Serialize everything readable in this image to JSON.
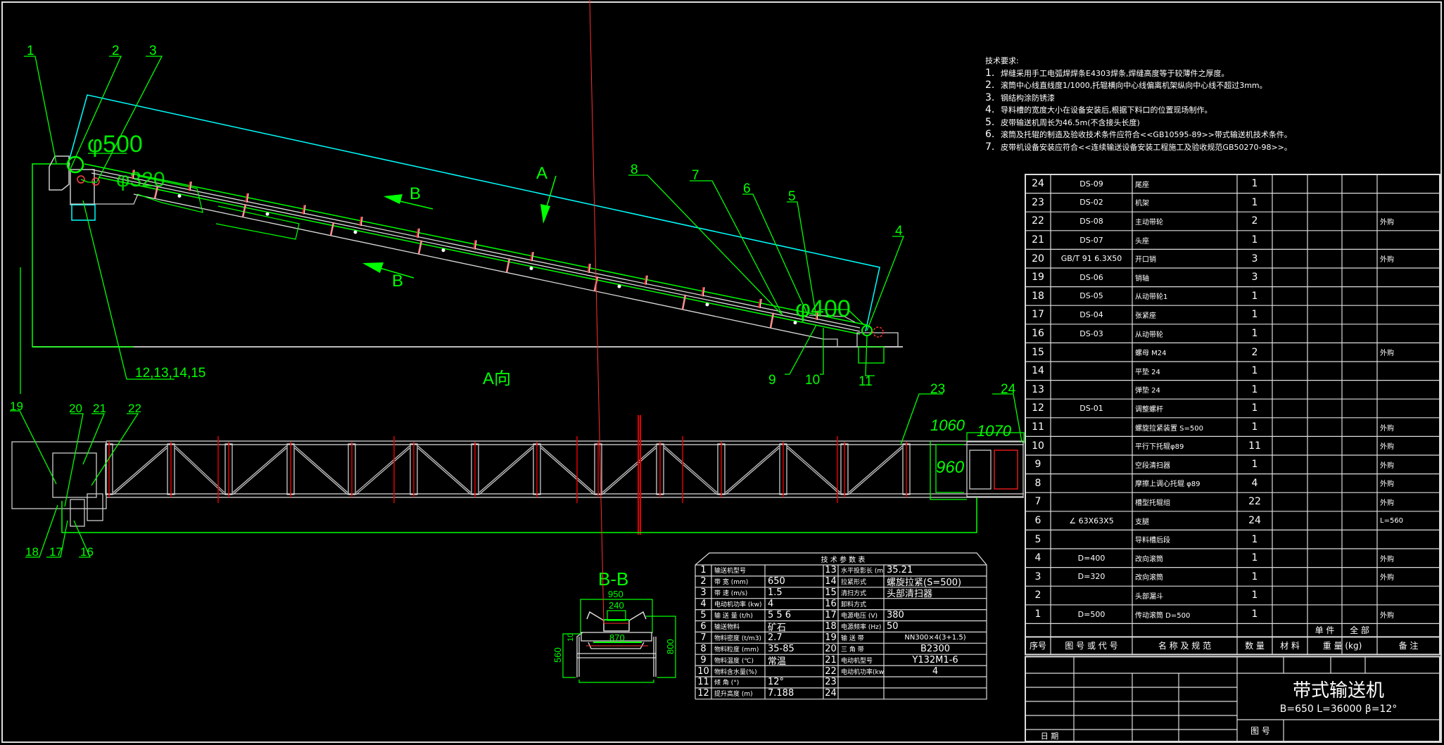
{
  "elevation": {
    "labels": [
      "1",
      "2",
      "3",
      "4",
      "5",
      "6",
      "7",
      "8",
      "9",
      "10",
      "11",
      "12,13,14,15"
    ],
    "diameters": {
      "head": "φ500",
      "bend": "φ320",
      "tail": "φ400"
    },
    "view_arrow": "A",
    "section_arrow": "B",
    "view_title": "A向"
  },
  "plan": {
    "labels": [
      "16",
      "17",
      "18",
      "19",
      "20",
      "21",
      "22",
      "23",
      "24"
    ],
    "dimensions": {
      "d1060": "1060",
      "d1070": "1070",
      "d960": "960"
    }
  },
  "section": {
    "title": "B-B",
    "dimensions": {
      "d950": "950",
      "d240": "240",
      "d870": "870",
      "d560": "560",
      "d800": "800",
      "d10": "10"
    }
  },
  "notes": {
    "heading": "技术要求:",
    "items": [
      {
        "num": "1.",
        "text": "焊缝采用手工电弧焊焊条E4303焊条,焊缝高度等于较薄件之厚度。"
      },
      {
        "num": "2.",
        "text": "滚筒中心线直线度1/1000,托辊横向中心线偏离机架纵向中心线不超过3mm。"
      },
      {
        "num": "3.",
        "text": "钢结构涂防锈漆"
      },
      {
        "num": "4.",
        "text": "导料槽的宽度大小在设备安装后,根据下料口的位置现场制作。"
      },
      {
        "num": "5.",
        "text": "皮带输送机周长为46.5m(不含接头长度)"
      },
      {
        "num": "6.",
        "text": "滚筒及托辊的制造及验收技术条件应符合<<GB10595-89>>带式输送机技术条件。"
      },
      {
        "num": "7.",
        "text": "皮带机设备安装应符合<<连续输送设备安装工程施工及验收规范GB50270-98>>。"
      }
    ]
  },
  "params": {
    "title": "技 术 参 数 表",
    "left": [
      {
        "no": "1",
        "name": "输送机型号",
        "value": ""
      },
      {
        "no": "2",
        "name": "带  宽 (mm)",
        "value": "650"
      },
      {
        "no": "3",
        "name": "带  速 (m/s)",
        "value": "1.5"
      },
      {
        "no": "4",
        "name": "电动机功率 (kw)",
        "value": "4"
      },
      {
        "no": "5",
        "name": "输 送 量 (t/h)",
        "value": "5 5 6"
      },
      {
        "no": "6",
        "name": "输送物料",
        "value": "矿石"
      },
      {
        "no": "7",
        "name": "物料密度 (t/m3)",
        "value": "2.7"
      },
      {
        "no": "8",
        "name": "物料粒度 (mm)",
        "value": "35-85"
      },
      {
        "no": "9",
        "name": "物料温度 (℃)",
        "value": "常温"
      },
      {
        "no": "10",
        "name": "物料含水量(%)",
        "value": ""
      },
      {
        "no": "11",
        "name": "倾  角 (°)",
        "value": "12°"
      },
      {
        "no": "12",
        "name": "提升高度 (m)",
        "value": "7.188"
      }
    ],
    "right": [
      {
        "no": "13",
        "name": "水平投影长 (m)",
        "value": "35.21"
      },
      {
        "no": "14",
        "name": "拉紧形式",
        "value": "螺旋拉紧(S=500)"
      },
      {
        "no": "15",
        "name": "清扫方式",
        "value": "头部清扫器"
      },
      {
        "no": "16",
        "name": "卸料方式",
        "value": ""
      },
      {
        "no": "17",
        "name": "电源电压 (V)",
        "value": "380"
      },
      {
        "no": "18",
        "name": "电源频率 (Hz)",
        "value": "50"
      },
      {
        "no": "19",
        "name": "输 送 带",
        "value": "NN300×4(3+1.5)"
      },
      {
        "no": "20",
        "name": "三 角 带",
        "value": "B2300"
      },
      {
        "no": "21",
        "name": "电动机型号",
        "value": "Y132M1-6"
      },
      {
        "no": "22",
        "name": "电动机功率(kw)",
        "value": "4"
      },
      {
        "no": "23",
        "name": "",
        "value": ""
      },
      {
        "no": "24",
        "name": "",
        "value": ""
      }
    ]
  },
  "bom": {
    "rows": [
      {
        "no": "24",
        "code": "DS-09",
        "name": "尾座",
        "qty": "1",
        "remark": ""
      },
      {
        "no": "23",
        "code": "DS-02",
        "name": "机架",
        "qty": "1",
        "remark": ""
      },
      {
        "no": "22",
        "code": "DS-08",
        "name": "主动带轮",
        "qty": "2",
        "remark": "外购"
      },
      {
        "no": "21",
        "code": "DS-07",
        "name": "头座",
        "qty": "1",
        "remark": ""
      },
      {
        "no": "20",
        "code": "GB/T 91 6.3X50",
        "name": "开口销",
        "qty": "3",
        "remark": "外购"
      },
      {
        "no": "19",
        "code": "DS-06",
        "name": "销轴",
        "qty": "3",
        "remark": ""
      },
      {
        "no": "18",
        "code": "DS-05",
        "name": "从动带轮1",
        "qty": "1",
        "remark": ""
      },
      {
        "no": "17",
        "code": "DS-04",
        "name": "张紧座",
        "qty": "1",
        "remark": ""
      },
      {
        "no": "16",
        "code": "DS-03",
        "name": "从动带轮",
        "qty": "1",
        "remark": ""
      },
      {
        "no": "15",
        "code": "",
        "name": "螺母 M24",
        "qty": "2",
        "remark": "外购"
      },
      {
        "no": "14",
        "code": "",
        "name": "平垫 24",
        "qty": "1",
        "remark": ""
      },
      {
        "no": "13",
        "code": "",
        "name": "弹垫 24",
        "qty": "1",
        "remark": ""
      },
      {
        "no": "12",
        "code": "DS-01",
        "name": "调整螺杆",
        "qty": "1",
        "remark": ""
      },
      {
        "no": "11",
        "code": "",
        "name": "螺旋拉紧装置 S=500",
        "qty": "1",
        "remark": "外购"
      },
      {
        "no": "10",
        "code": "",
        "name": "平行下托辊φ89",
        "qty": "11",
        "remark": "外购"
      },
      {
        "no": "9",
        "code": "",
        "name": "空段清扫器",
        "qty": "1",
        "remark": "外购"
      },
      {
        "no": "8",
        "code": "",
        "name": "摩擦上调心托辊 φ89",
        "qty": "4",
        "remark": "外购"
      },
      {
        "no": "7",
        "code": "",
        "name": "槽型托辊组",
        "qty": "22",
        "remark": "外购"
      },
      {
        "no": "6",
        "code": "∠ 63X63X5",
        "name": "支腿",
        "qty": "24",
        "remark": "L=560"
      },
      {
        "no": "5",
        "code": "",
        "name": "导料槽后段",
        "qty": "1",
        "remark": ""
      },
      {
        "no": "4",
        "code": "D=400",
        "name": "改向滚筒",
        "qty": "1",
        "remark": "外购"
      },
      {
        "no": "3",
        "code": "D=320",
        "name": "改向滚筒",
        "qty": "1",
        "remark": "外购"
      },
      {
        "no": "2",
        "code": "",
        "name": "头部漏斗",
        "qty": "1",
        "remark": ""
      },
      {
        "no": "1",
        "code": "D=500",
        "name": "传动滚筒 D=500",
        "qty": "1",
        "remark": "外购"
      }
    ],
    "weight_sub": {
      "single": "单 件",
      "total": "全 部"
    },
    "header": {
      "no": "序号",
      "code": "图 号 或 代 号",
      "name": "名 称 及 规 范",
      "qty": "数 量",
      "material": "材 料",
      "weight": "重 量 (kg)",
      "remark": "备   注"
    }
  },
  "title_block": {
    "title": "带式输送机",
    "subtitle": "B=650 L=36000   β=12°",
    "date_label": "日   期",
    "drawing_no_label": "图   号"
  },
  "colors": {
    "dimension": "#00ff00",
    "centerline": "#ff0000",
    "outline": "#00ffff",
    "geometry": "#ffffff",
    "background": "#000000"
  }
}
